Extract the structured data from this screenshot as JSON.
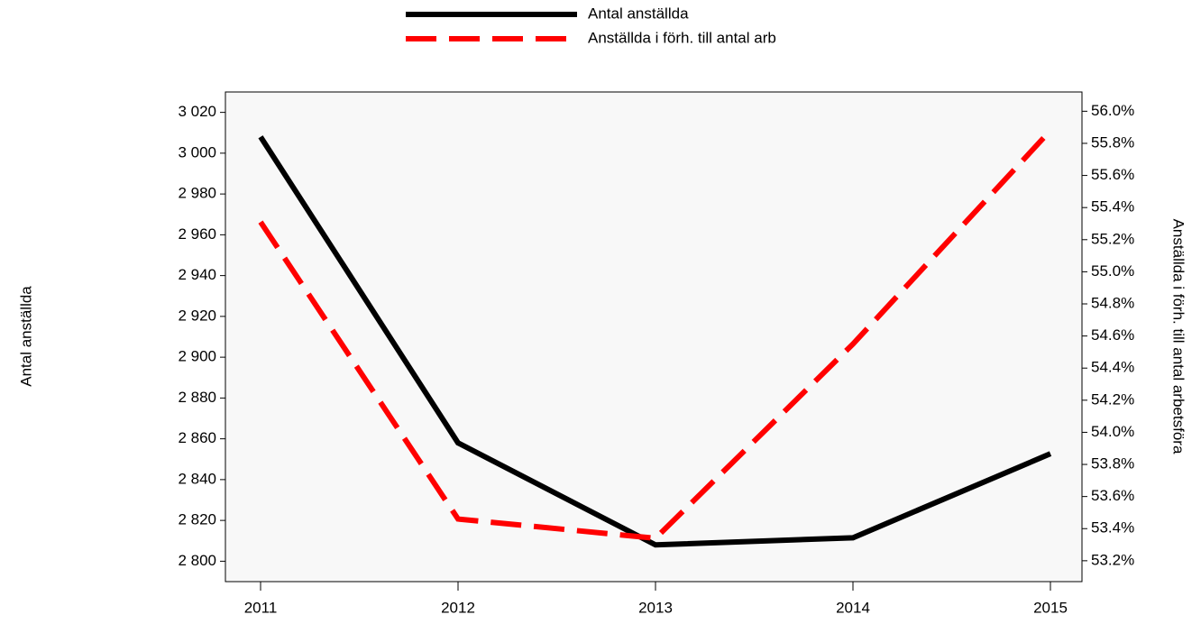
{
  "chart_data": {
    "type": "line",
    "ylabel": "Antal anställda",
    "y2label": "Anställda i förh. till antal arbetsföra",
    "categories": [
      "2011",
      "2012",
      "2013",
      "2014",
      "2015"
    ],
    "series": [
      {
        "name": "Antal anställda",
        "color": "#000000",
        "values": [
          3008,
          2858,
          2808,
          2811.5,
          2852.7
        ]
      },
      {
        "name": "Anställda i förh. till antal arb",
        "color": "#ff0000",
        "axis": "y2",
        "dashed": true,
        "values": [
          55.31,
          53.46,
          53.34,
          54.55,
          55.88
        ]
      }
    ],
    "ylim": [
      2790,
      3030
    ],
    "yticks": [
      {
        "value": 2800,
        "label": "2 800"
      },
      {
        "value": 2820,
        "label": "2 820"
      },
      {
        "value": 2840,
        "label": "2 840"
      },
      {
        "value": 2860,
        "label": "2 860"
      },
      {
        "value": 2880,
        "label": "2 880"
      },
      {
        "value": 2900,
        "label": "2 900"
      },
      {
        "value": 2920,
        "label": "2 920"
      },
      {
        "value": 2940,
        "label": "2 940"
      },
      {
        "value": 2960,
        "label": "2 960"
      },
      {
        "value": 2980,
        "label": "2 980"
      },
      {
        "value": 3000,
        "label": "3 000"
      },
      {
        "value": 3020,
        "label": "3 020"
      }
    ],
    "y2lim": [
      53.07,
      56.12
    ],
    "y2ticks": [
      {
        "value": 53.2,
        "label": "53.2%"
      },
      {
        "value": 53.4,
        "label": "53.4%"
      },
      {
        "value": 53.6,
        "label": "53.6%"
      },
      {
        "value": 53.8,
        "label": "53.8%"
      },
      {
        "value": 54.0,
        "label": "54.0%"
      },
      {
        "value": 54.2,
        "label": "54.2%"
      },
      {
        "value": 54.4,
        "label": "54.4%"
      },
      {
        "value": 54.6,
        "label": "54.6%"
      },
      {
        "value": 54.8,
        "label": "54.8%"
      },
      {
        "value": 55.0,
        "label": "55.0%"
      },
      {
        "value": 55.2,
        "label": "55.2%"
      },
      {
        "value": 55.4,
        "label": "55.4%"
      },
      {
        "value": 55.6,
        "label": "55.6%"
      },
      {
        "value": 55.8,
        "label": "55.8%"
      },
      {
        "value": 56.0,
        "label": "56.0%"
      }
    ],
    "legend": "top"
  }
}
